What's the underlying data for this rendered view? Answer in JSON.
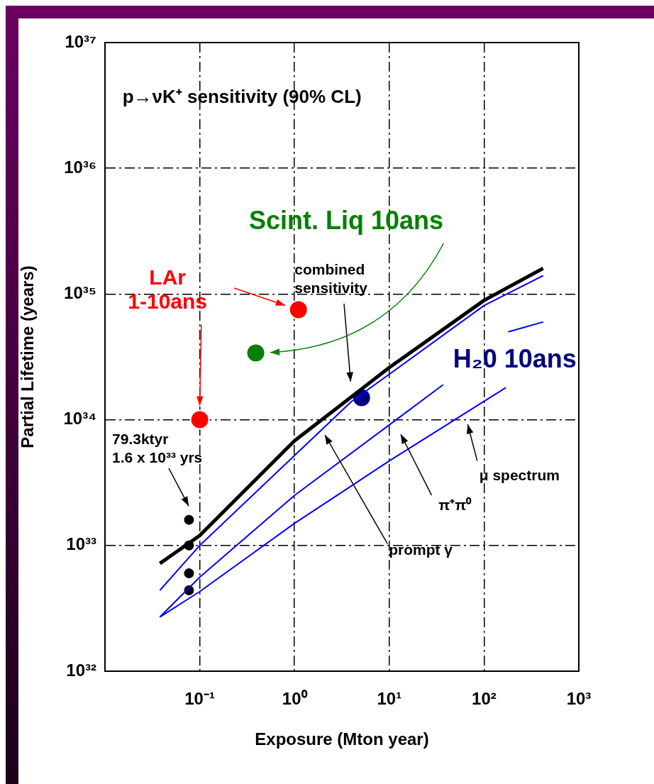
{
  "chart_data": {
    "type": "line",
    "title": "p→νK⁺ sensitivity (90% CL)",
    "xlabel": "Exposure (Mton year)",
    "ylabel": "Partial Lifetime (years)",
    "log": "xy",
    "grid": true,
    "xlim": [
      0.01,
      1000
    ],
    "xticks": [
      {
        "value": 0.1,
        "label": "10⁻¹"
      },
      {
        "value": 1,
        "label": "10⁰"
      },
      {
        "value": 10,
        "label": "10¹"
      },
      {
        "value": 100,
        "label": "10²"
      },
      {
        "value": 1000,
        "label": "10³"
      }
    ],
    "ylim": [
      1e+32,
      1e+37
    ],
    "yticks": [
      {
        "value": 1e+32,
        "label": "10³²"
      },
      {
        "value": 1e+33,
        "label": "10³³"
      },
      {
        "value": 1e+34,
        "label": "10³⁴"
      },
      {
        "value": 1e+35,
        "label": "10³⁵"
      },
      {
        "value": 1e+36,
        "label": "10³⁶"
      },
      {
        "value": 1e+37,
        "label": "10³⁷"
      }
    ],
    "series": [
      {
        "color": "#000000",
        "x": [
          0.038,
          0.1,
          1,
          10,
          100,
          420
        ],
        "values": [
          7.2e+32,
          1.2e+33,
          6.8e+33,
          2.6e+34,
          8.9e+34,
          1.6e+35
        ]
      },
      {
        "color": "#0000ff",
        "x": [
          0.038,
          0.1,
          1,
          4,
          10,
          100,
          420
        ],
        "values": [
          4.4e+32,
          1e+33,
          5.2e+33,
          1.4e+34,
          2.3e+34,
          8.1e+34,
          1.4e+35
        ]
      },
      {
        "color": "#0000ff",
        "x": [
          0.038,
          0.1,
          1,
          10,
          37,
          100,
          180,
          420
        ],
        "values": [
          2.7e+32,
          5.6e+32,
          2.5e+33,
          9.1e+33,
          1.9e+34,
          null,
          5e+34,
          6e+34
        ]
      },
      {
        "color": "#0000ff",
        "x": [
          0.038,
          0.1,
          1,
          10,
          100,
          170
        ],
        "values": [
          2.7e+32,
          4.3e+32,
          1.5e+33,
          4.7e+33,
          1.4e+34,
          1.8e+34
        ]
      },
      {
        "type": "scatter",
        "marker": "circle",
        "color": "#000000",
        "x": [
          0.077,
          0.077,
          0.077,
          0.077
        ],
        "values": [
          1.6e+33,
          1e+33,
          6e+32,
          4.4e+32
        ]
      },
      {
        "type": "scatter",
        "marker": "circle",
        "name": "LAr 1-10ans",
        "color": "#ff0000",
        "x": [
          0.1,
          1.1
        ],
        "values": [
          1e+34,
          7.5e+34
        ]
      },
      {
        "type": "scatter",
        "marker": "circle",
        "name": "Scint. Liq 10ans",
        "color": "#008000",
        "x": [
          0.39
        ],
        "values": [
          3.4e+34
        ]
      },
      {
        "type": "scatter",
        "marker": "circle",
        "name": "H₂0 10ans",
        "color": "#000080",
        "x": [
          5.1
        ],
        "values": [
          1.5e+34
        ]
      }
    ],
    "annotations": [
      "combined sensitivity",
      "79.3ktyr\n1.6 x 10³³ yrs",
      "prompt γ",
      "π⁺π⁰",
      "μ spectrum"
    ]
  }
}
